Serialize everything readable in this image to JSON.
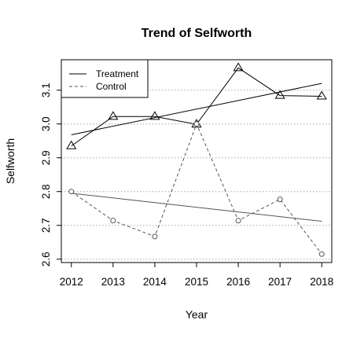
{
  "chart_data": {
    "type": "line",
    "title": "Trend of Selfworth",
    "xlabel": "Year",
    "ylabel": "Selfworth",
    "x": [
      2012,
      2013,
      2014,
      2015,
      2016,
      2017,
      2018
    ],
    "xticks": [
      "2012",
      "2013",
      "2014",
      "2015",
      "2016",
      "2017",
      "2018"
    ],
    "yticks": [
      "2.6",
      "2.7",
      "2.8",
      "2.9",
      "3.0",
      "3.1"
    ],
    "xlim": [
      2011.76,
      2018.24
    ],
    "ylim": [
      2.59,
      3.19
    ],
    "grid": "horizontal-dotted",
    "legend_position": "top-left",
    "series": [
      {
        "name": "Treatment",
        "line_style": "solid",
        "marker": "triangle",
        "values": [
          2.935,
          3.022,
          3.022,
          2.999,
          3.166,
          3.084,
          3.082
        ],
        "trend": [
          2.968,
          3.12
        ]
      },
      {
        "name": "Control",
        "line_style": "dashed",
        "marker": "circle",
        "values": [
          2.8,
          2.714,
          2.667,
          3.0,
          2.714,
          2.777,
          2.615
        ],
        "trend": [
          2.795,
          2.712
        ]
      }
    ]
  }
}
